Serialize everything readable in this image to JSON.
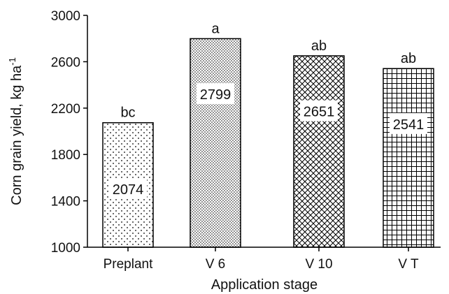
{
  "chart_data": {
    "type": "bar",
    "categories": [
      "Preplant",
      "V 6",
      "V 10",
      "V T"
    ],
    "values": [
      2074,
      2799,
      2651,
      2541
    ],
    "value_labels": [
      "2074",
      "2799",
      "2651",
      "2541"
    ],
    "significance": [
      "bc",
      "a",
      "ab",
      "ab"
    ],
    "patterns": [
      "sparse-dots",
      "dense-dots",
      "crosshatch",
      "grid"
    ],
    "xlabel": "Application stage",
    "ylabel": "Corn grain yield, kg ha",
    "ylabel_superscript": "-1",
    "ylim": [
      1000,
      3000
    ],
    "yticks": [
      "1000",
      "1400",
      "1800",
      "2200",
      "2600",
      "3000"
    ],
    "grid": false,
    "colors": {
      "bar_stroke": "#000000",
      "pattern": "#000000",
      "background": "#ffffff"
    }
  }
}
